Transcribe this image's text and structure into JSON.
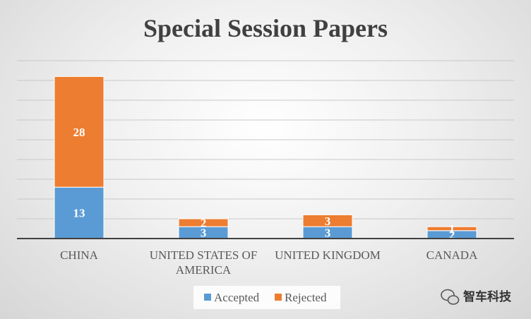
{
  "chart_data": {
    "type": "bar",
    "stacked": true,
    "title": "Special Session Papers",
    "categories": [
      [
        "CHINA"
      ],
      [
        "UNITED STATES OF",
        "AMERICA"
      ],
      [
        "UNITED KINGDOM"
      ],
      [
        "CANADA"
      ]
    ],
    "series": [
      {
        "name": "Accepted",
        "color": "#5B9BD5",
        "values": [
          13,
          3,
          3,
          2
        ]
      },
      {
        "name": "Rejected",
        "color": "#ED7D31",
        "values": [
          28,
          2,
          3,
          1
        ]
      }
    ],
    "ylim": [
      0,
      45
    ],
    "grid": true,
    "legend_position": "bottom"
  },
  "watermark": {
    "text": "智车科技",
    "icon": "wechat-icon"
  }
}
